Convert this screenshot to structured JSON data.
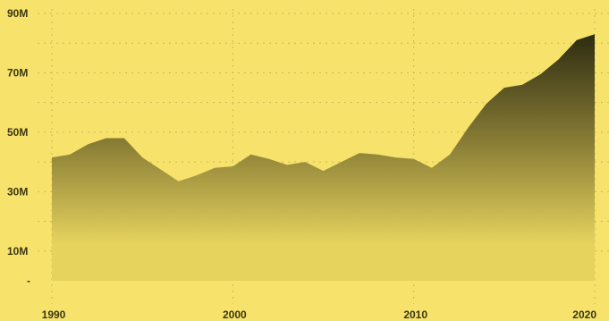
{
  "chart_data": {
    "type": "area",
    "title": "",
    "xlabel": "",
    "ylabel": "",
    "xlim": [
      1990,
      2020
    ],
    "ylim": [
      0,
      90
    ],
    "grid": true,
    "colors": {
      "background": "#f7e36b",
      "fill_top": "#2e2c12",
      "fill_mid": "#8b7f36",
      "fill_bottom": "#e6d35e",
      "tick_text": "#3a3613",
      "grid": "#c9b65a"
    },
    "y_ticks": [
      {
        "value": 90,
        "label": "90M"
      },
      {
        "value": 70,
        "label": "70M"
      },
      {
        "value": 50,
        "label": "50M"
      },
      {
        "value": 30,
        "label": "30M"
      },
      {
        "value": 10,
        "label": "10M"
      },
      {
        "value": 0,
        "label": "-"
      }
    ],
    "x_ticks": [
      {
        "value": 1990,
        "label": "1990"
      },
      {
        "value": 2000,
        "label": "2000"
      },
      {
        "value": 2010,
        "label": "2010"
      },
      {
        "value": 2020,
        "label": "2020"
      }
    ],
    "series": [
      {
        "x": [
          1990,
          1991,
          1992,
          1993,
          1994,
          1995,
          1996,
          1997,
          1998,
          1999,
          2000,
          2001,
          2002,
          2003,
          2004,
          2005,
          2006,
          2007,
          2008,
          2009,
          2010,
          2011,
          2012,
          2013,
          2014,
          2015,
          2016,
          2017,
          2018,
          2019,
          2020
        ],
        "values": [
          41.5,
          42.5,
          46,
          48,
          48,
          41.5,
          37.5,
          33.5,
          35.5,
          38,
          38.5,
          42.5,
          41,
          39,
          40,
          37,
          40,
          43,
          42.5,
          41.5,
          41,
          38,
          42.5,
          51.5,
          59.5,
          65,
          66,
          69.5,
          74.5,
          81,
          83
        ]
      }
    ]
  }
}
